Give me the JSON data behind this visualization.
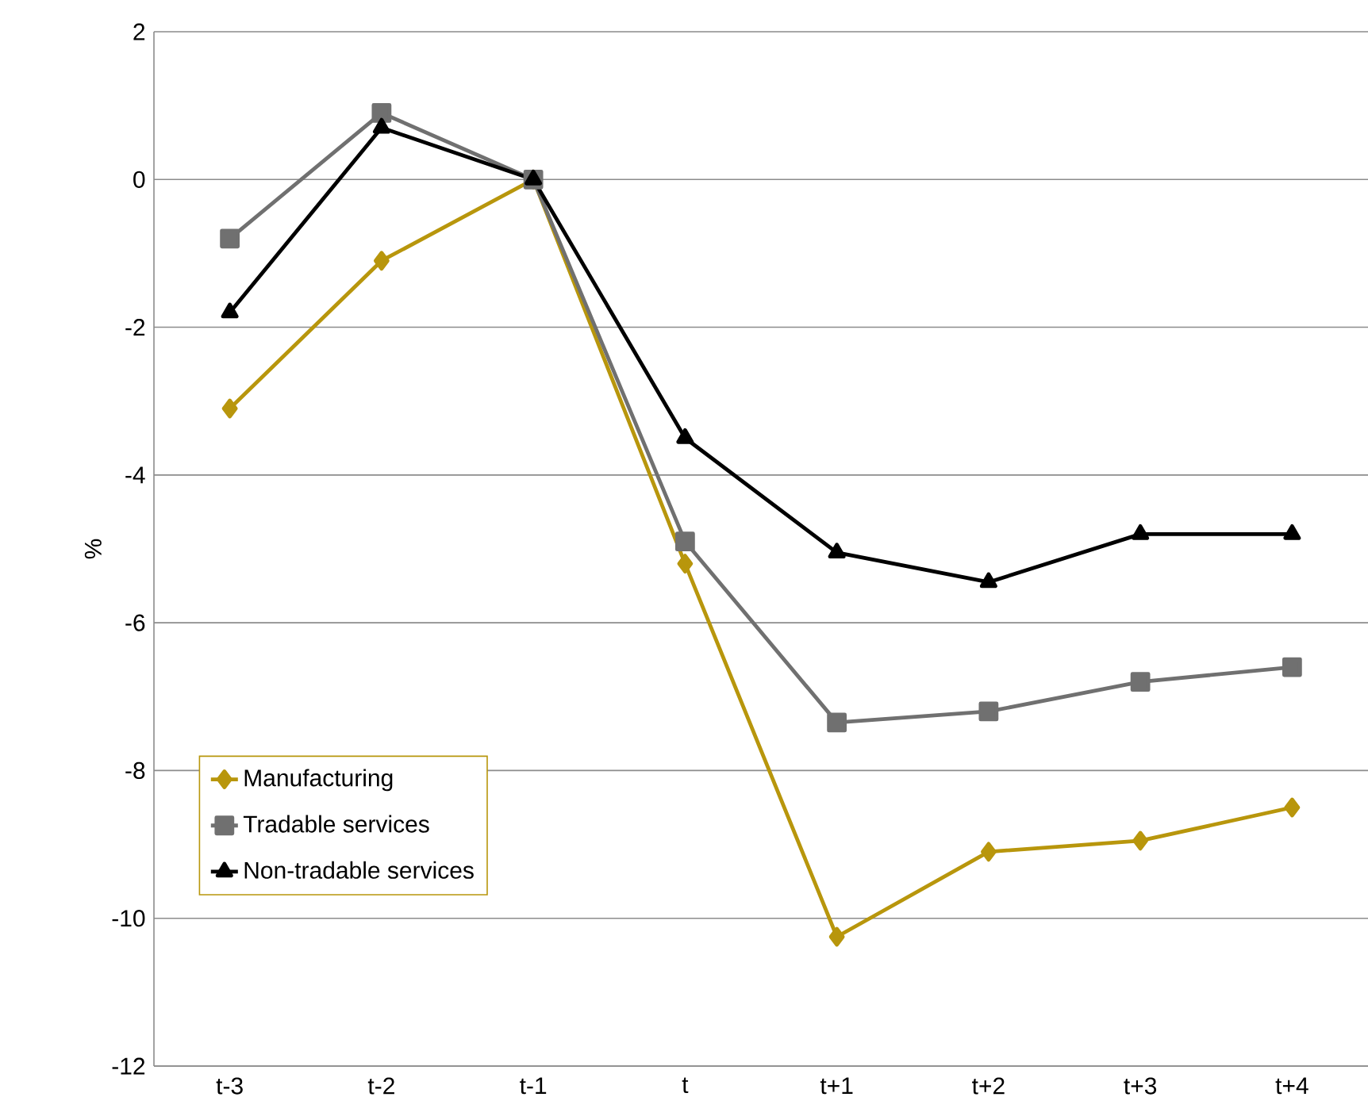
{
  "chart_data": {
    "type": "line",
    "ylabel": "%",
    "categories": [
      "t-3",
      "t-2",
      "t-1",
      "t",
      "t+1",
      "t+2",
      "t+3",
      "t+4"
    ],
    "series": [
      {
        "name": "Manufacturing",
        "color": "#b8960c",
        "marker": "diamond",
        "values": [
          -3.1,
          -1.1,
          0,
          -5.2,
          -10.25,
          -9.1,
          -8.95,
          -8.5
        ]
      },
      {
        "name": "Tradable services",
        "color": "#707070",
        "marker": "square",
        "values": [
          -0.8,
          0.9,
          0,
          -4.9,
          -7.35,
          -7.2,
          -6.8,
          -6.6
        ]
      },
      {
        "name": "Non-tradable services",
        "color": "#000000",
        "marker": "triangle",
        "values": [
          -1.8,
          0.7,
          0,
          -3.5,
          -5.05,
          -5.45,
          -4.8,
          -4.8
        ]
      }
    ],
    "ylim": [
      -12,
      2
    ],
    "yticks": [
      -12,
      -10,
      -8,
      -6,
      -4,
      -2,
      0,
      2
    ],
    "grid": "y",
    "legend": "bottom left",
    "line_style": "solid"
  }
}
